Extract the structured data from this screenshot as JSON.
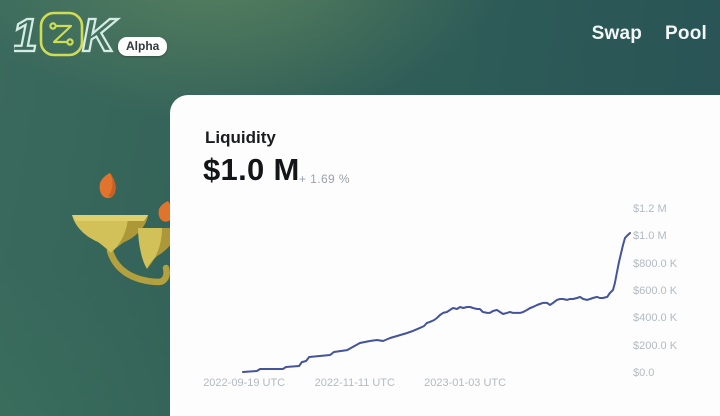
{
  "header": {
    "logo": {
      "one": "1",
      "k": "K",
      "alpha_badge": "Alpha"
    },
    "nav": [
      {
        "label": "Swap"
      },
      {
        "label": "Pool"
      }
    ]
  },
  "card": {
    "title": "Liquidity",
    "value": "$1.0 M",
    "change": "+ 1.69 %"
  },
  "colors": {
    "background_teal_left": "#3a6a5d",
    "background_teal_right": "#295255",
    "accent_lime": "#cfdd55",
    "logo_cyan": "#d5ece5",
    "card_white": "#fdfdfe",
    "chart_line": "#44549b",
    "axis_label_gray": "#b3bac1",
    "change_gray": "#9ba2a9",
    "flame_orange": "#e1742d",
    "candelabra_gold": "#d2c158"
  },
  "chart_data": {
    "type": "line",
    "title": "Liquidity",
    "current_value": "$1.0 M",
    "change_percent": "+ 1.69 %",
    "grid": false,
    "legend": "none",
    "y_axis_position": "right",
    "x_ticks": [
      {
        "label": "2022-09-19 UTC",
        "f": 0.003
      },
      {
        "label": "2022-11-11 UTC",
        "f": 0.289
      },
      {
        "label": "2023-01-03 UTC",
        "f": 0.574
      }
    ],
    "x_range_dates": [
      "2022-09-18",
      "2023-03-24"
    ],
    "y_ticks": [
      {
        "label": "$1.2 M",
        "value_k": 1200
      },
      {
        "label": "$1.0 M",
        "value_k": 1000
      },
      {
        "label": "$800.0 K",
        "value_k": 800
      },
      {
        "label": "$600.0 K",
        "value_k": 600
      },
      {
        "label": "$400.0 K",
        "value_k": 400
      },
      {
        "label": "$200.0 K",
        "value_k": 200
      },
      {
        "label": "$0.0",
        "value_k": 0
      }
    ],
    "y_range_k": [
      0,
      1340
    ],
    "series": [
      {
        "name": "Liquidity (USD, thousands)",
        "points_fv": [
          [
            0.0,
            7
          ],
          [
            0.036,
            15
          ],
          [
            0.044,
            29
          ],
          [
            0.103,
            29
          ],
          [
            0.111,
            44
          ],
          [
            0.145,
            51
          ],
          [
            0.152,
            80
          ],
          [
            0.163,
            88
          ],
          [
            0.171,
            117
          ],
          [
            0.225,
            132
          ],
          [
            0.235,
            154
          ],
          [
            0.269,
            168
          ],
          [
            0.302,
            220
          ],
          [
            0.328,
            234
          ],
          [
            0.346,
            242
          ],
          [
            0.362,
            234
          ],
          [
            0.38,
            256
          ],
          [
            0.398,
            271
          ],
          [
            0.424,
            293
          ],
          [
            0.439,
            308
          ],
          [
            0.457,
            330
          ],
          [
            0.468,
            344
          ],
          [
            0.475,
            366
          ],
          [
            0.483,
            374
          ],
          [
            0.494,
            388
          ],
          [
            0.501,
            403
          ],
          [
            0.509,
            425
          ],
          [
            0.517,
            440
          ],
          [
            0.527,
            447
          ],
          [
            0.535,
            462
          ],
          [
            0.543,
            476
          ],
          [
            0.553,
            469
          ],
          [
            0.561,
            483
          ],
          [
            0.569,
            476
          ],
          [
            0.579,
            483
          ],
          [
            0.587,
            483
          ],
          [
            0.594,
            476
          ],
          [
            0.605,
            469
          ],
          [
            0.612,
            469
          ],
          [
            0.62,
            447
          ],
          [
            0.631,
            440
          ],
          [
            0.638,
            440
          ],
          [
            0.646,
            454
          ],
          [
            0.656,
            462
          ],
          [
            0.664,
            447
          ],
          [
            0.672,
            432
          ],
          [
            0.682,
            440
          ],
          [
            0.69,
            447
          ],
          [
            0.698,
            440
          ],
          [
            0.708,
            440
          ],
          [
            0.716,
            440
          ],
          [
            0.724,
            447
          ],
          [
            0.734,
            462
          ],
          [
            0.742,
            476
          ],
          [
            0.749,
            483
          ],
          [
            0.76,
            498
          ],
          [
            0.767,
            505
          ],
          [
            0.775,
            513
          ],
          [
            0.786,
            513
          ],
          [
            0.793,
            498
          ],
          [
            0.801,
            513
          ],
          [
            0.811,
            535
          ],
          [
            0.819,
            542
          ],
          [
            0.827,
            542
          ],
          [
            0.837,
            535
          ],
          [
            0.845,
            542
          ],
          [
            0.853,
            542
          ],
          [
            0.863,
            549
          ],
          [
            0.871,
            557
          ],
          [
            0.879,
            542
          ],
          [
            0.889,
            535
          ],
          [
            0.897,
            542
          ],
          [
            0.904,
            549
          ],
          [
            0.915,
            557
          ],
          [
            0.922,
            549
          ],
          [
            0.93,
            549
          ],
          [
            0.941,
            557
          ],
          [
            0.948,
            586
          ],
          [
            0.956,
            608
          ],
          [
            0.961,
            659
          ],
          [
            0.966,
            732
          ],
          [
            0.971,
            806
          ],
          [
            0.977,
            879
          ],
          [
            0.982,
            937
          ],
          [
            0.987,
            989
          ],
          [
            0.992,
            1004
          ],
          [
            1.0,
            1025
          ]
        ]
      }
    ]
  }
}
